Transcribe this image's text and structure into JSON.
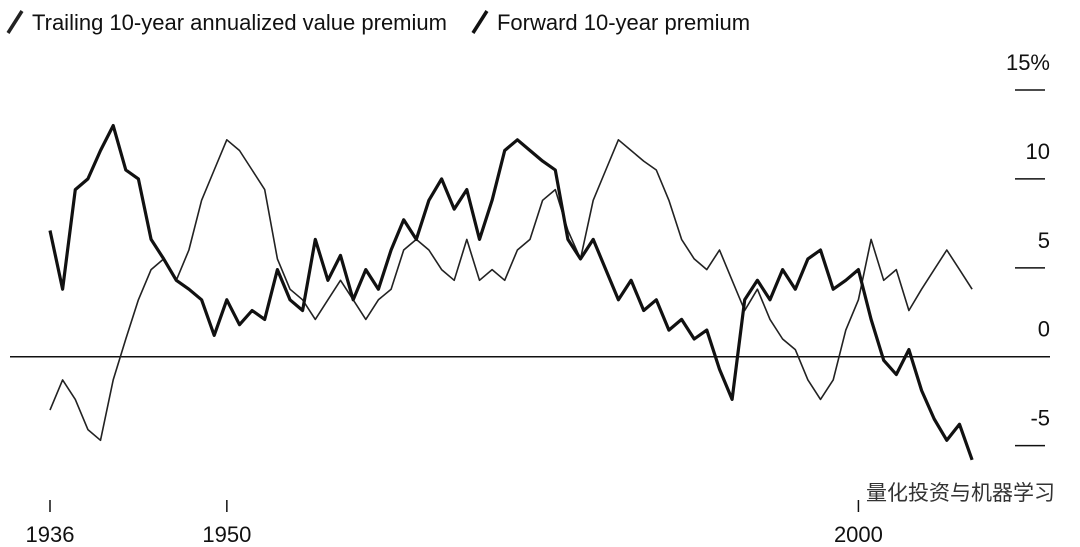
{
  "chart_data": {
    "type": "line",
    "legend_position": "top-left",
    "watermark": "量化投资与机器学习",
    "x": [
      1936,
      1937,
      1938,
      1939,
      1940,
      1941,
      1942,
      1943,
      1944,
      1945,
      1946,
      1947,
      1948,
      1949,
      1950,
      1951,
      1952,
      1953,
      1954,
      1955,
      1956,
      1957,
      1958,
      1959,
      1960,
      1961,
      1962,
      1963,
      1964,
      1965,
      1966,
      1967,
      1968,
      1969,
      1970,
      1971,
      1972,
      1973,
      1974,
      1975,
      1976,
      1977,
      1978,
      1979,
      1980,
      1981,
      1982,
      1983,
      1984,
      1985,
      1986,
      1987,
      1988,
      1989,
      1990,
      1991,
      1992,
      1993,
      1994,
      1995,
      1996,
      1997,
      1998,
      1999,
      2000,
      2001,
      2002,
      2003,
      2004,
      2005,
      2006,
      2007,
      2008,
      2009
    ],
    "series": [
      {
        "name": "Trailing 10-year annualized value premium",
        "color": "#222222",
        "width": 1.6,
        "values": [
          -3,
          -1.3,
          -2.4,
          -4.1,
          -4.7,
          -1.3,
          1,
          3.2,
          4.9,
          5.5,
          4.3,
          6,
          8.8,
          10.5,
          12.2,
          11.6,
          10.5,
          9.4,
          5.5,
          3.8,
          3.2,
          2.1,
          3.2,
          4.3,
          3.2,
          2.1,
          3.2,
          3.8,
          6,
          6.6,
          6,
          4.9,
          4.3,
          6.6,
          4.3,
          4.9,
          4.3,
          6,
          6.6,
          8.8,
          9.4,
          7.1,
          5.5,
          8.8,
          10.5,
          12.2,
          11.6,
          11,
          10.5,
          8.8,
          6.6,
          5.5,
          4.9,
          6,
          4.3,
          2.6,
          3.8,
          2.1,
          1,
          0.4,
          -1.3,
          -2.4,
          -1.3,
          1.5,
          3.2,
          6.6,
          4.3,
          4.9,
          2.6,
          3.8,
          4.9,
          6,
          4.9,
          3.8
        ]
      },
      {
        "name": "Forward 10-year premium",
        "color": "#111111",
        "width": 3.2,
        "values": [
          7.1,
          3.8,
          9.4,
          10,
          11.6,
          13,
          10.5,
          10,
          6.6,
          5.5,
          4.3,
          3.8,
          3.2,
          1.2,
          3.2,
          1.8,
          2.6,
          2.1,
          4.9,
          3.2,
          2.6,
          6.6,
          4.3,
          5.7,
          3.2,
          4.9,
          3.8,
          6,
          7.7,
          6.6,
          8.8,
          10,
          8.3,
          9.4,
          6.6,
          8.8,
          11.6,
          12.2,
          11.6,
          11,
          10.5,
          6.6,
          5.5,
          6.6,
          4.9,
          3.2,
          4.3,
          2.6,
          3.2,
          1.5,
          2.1,
          1,
          1.5,
          -0.7,
          -2.4,
          3.2,
          4.3,
          3.2,
          4.9,
          3.8,
          5.5,
          6,
          3.8,
          4.3,
          4.9,
          2.1,
          -0.2,
          -1,
          0.4,
          -1.9,
          -3.5,
          -4.7,
          -3.8,
          -5.8
        ]
      }
    ],
    "xlim": [
      1936,
      2012
    ],
    "xticks": [
      1936,
      1950,
      2000
    ],
    "ylim": [
      -8,
      15
    ],
    "yticks": [
      {
        "value": 15,
        "label": "15%"
      },
      10,
      5,
      0,
      -5
    ]
  }
}
